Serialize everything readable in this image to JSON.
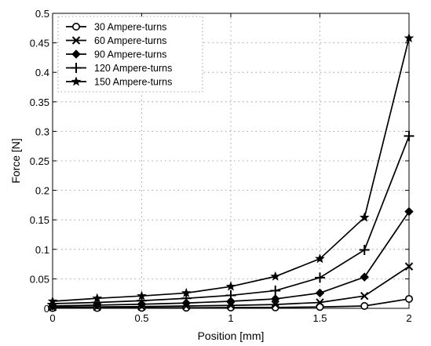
{
  "chart_data": {
    "type": "line",
    "title": "",
    "xlabel": "Position [mm]",
    "ylabel": "Force [N]",
    "xlim": [
      0,
      2
    ],
    "ylim": [
      0,
      0.5
    ],
    "x_ticks": [
      "0",
      "0.5",
      "1",
      "1.5",
      "2"
    ],
    "y_ticks": [
      "0",
      "0.05",
      "0.1",
      "0.15",
      "0.2",
      "0.25",
      "0.3",
      "0.35",
      "0.4",
      "0.45",
      "0.5"
    ],
    "grid": true,
    "grid_style": "dotted",
    "legend_position": "top-left",
    "x": [
      0,
      0.25,
      0.5,
      0.75,
      1.0,
      1.25,
      1.5,
      1.75,
      2.0
    ],
    "series": [
      {
        "name": "30 Ampere-turns",
        "marker": "circle",
        "values": [
          0.0005,
          0.0006,
          0.0008,
          0.001,
          0.0013,
          0.0016,
          0.0023,
          0.004,
          0.016
        ]
      },
      {
        "name": "60 Ampere-turns",
        "marker": "x",
        "values": [
          0.002,
          0.0025,
          0.003,
          0.004,
          0.005,
          0.0065,
          0.01,
          0.021,
          0.071
        ]
      },
      {
        "name": "90 Ampere-turns",
        "marker": "diamond",
        "values": [
          0.004,
          0.0055,
          0.007,
          0.009,
          0.012,
          0.016,
          0.026,
          0.053,
          0.164
        ]
      },
      {
        "name": "120 Ampere-turns",
        "marker": "plus",
        "values": [
          0.008,
          0.01,
          0.013,
          0.017,
          0.022,
          0.03,
          0.052,
          0.099,
          0.292
        ]
      },
      {
        "name": "150 Ampere-turns",
        "marker": "star",
        "values": [
          0.012,
          0.017,
          0.021,
          0.026,
          0.037,
          0.054,
          0.084,
          0.154,
          0.458
        ]
      }
    ]
  }
}
